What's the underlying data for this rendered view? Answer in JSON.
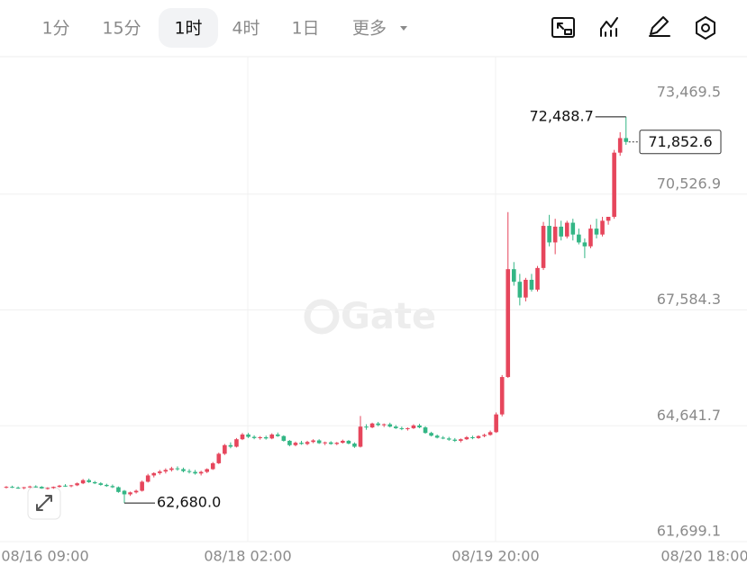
{
  "header": {
    "tabs": [
      "1分",
      "15分",
      "1时",
      "4时",
      "1日",
      "更多"
    ],
    "active_tab": 2
  },
  "chart_data": {
    "type": "candlestick",
    "watermark": "Gate",
    "up_color": "#e6465c",
    "down_color": "#33b685",
    "ylim": [
      61699.1,
      73469.5
    ],
    "yticks": [
      {
        "value": 61699.1,
        "label": "61,699.1"
      },
      {
        "value": 64641.7,
        "label": "64,641.7"
      },
      {
        "value": 67584.3,
        "label": "67,584.3"
      },
      {
        "value": 70526.9,
        "label": "70,526.9"
      },
      {
        "value": 73469.5,
        "label": "73,469.5"
      }
    ],
    "xtick_labels": [
      "08/16 09:00",
      "08/18 02:00",
      "08/19 20:00",
      "08/20 18:00"
    ],
    "high_marker": {
      "value": 72488.7,
      "label": "72,488.7"
    },
    "low_marker": {
      "value": 62680.0,
      "label": "62,680.0"
    },
    "last_price": {
      "value": 71852.6,
      "label": "71,852.6"
    },
    "candles": [
      [
        63080,
        63110,
        63050,
        63090
      ],
      [
        63090,
        63120,
        63060,
        63070
      ],
      [
        63070,
        63100,
        63040,
        63060
      ],
      [
        63060,
        63090,
        63030,
        63080
      ],
      [
        63080,
        63120,
        63060,
        63100
      ],
      [
        63100,
        63130,
        63070,
        63090
      ],
      [
        63090,
        63110,
        63040,
        63050
      ],
      [
        63050,
        63080,
        63020,
        63060
      ],
      [
        63060,
        63100,
        63040,
        63090
      ],
      [
        63090,
        63140,
        63070,
        63120
      ],
      [
        63120,
        63160,
        63090,
        63110
      ],
      [
        63110,
        63140,
        63080,
        63130
      ],
      [
        63130,
        63200,
        63110,
        63180
      ],
      [
        63180,
        63290,
        63160,
        63260
      ],
      [
        63260,
        63300,
        63190,
        63210
      ],
      [
        63210,
        63240,
        63160,
        63180
      ],
      [
        63180,
        63210,
        63120,
        63140
      ],
      [
        63140,
        63170,
        63090,
        63110
      ],
      [
        63110,
        63150,
        63060,
        63080
      ],
      [
        63080,
        63100,
        62940,
        62960
      ],
      [
        62990,
        63010,
        62680,
        62900
      ],
      [
        62900,
        62970,
        62860,
        62950
      ],
      [
        62950,
        63020,
        62920,
        62990
      ],
      [
        62990,
        63250,
        62970,
        63220
      ],
      [
        63220,
        63420,
        63200,
        63380
      ],
      [
        63380,
        63460,
        63330,
        63440
      ],
      [
        63440,
        63520,
        63400,
        63480
      ],
      [
        63480,
        63560,
        63430,
        63520
      ],
      [
        63520,
        63600,
        63480,
        63560
      ],
      [
        63560,
        63610,
        63500,
        63540
      ],
      [
        63540,
        63580,
        63460,
        63490
      ],
      [
        63490,
        63540,
        63430,
        63470
      ],
      [
        63470,
        63520,
        63400,
        63430
      ],
      [
        63430,
        63500,
        63380,
        63470
      ],
      [
        63470,
        63560,
        63440,
        63540
      ],
      [
        63540,
        63720,
        63520,
        63690
      ],
      [
        63690,
        63960,
        63670,
        63930
      ],
      [
        63930,
        64180,
        63900,
        64150
      ],
      [
        64150,
        64220,
        64070,
        64110
      ],
      [
        64110,
        64330,
        64090,
        64300
      ],
      [
        64300,
        64460,
        64280,
        64420
      ],
      [
        64420,
        64460,
        64330,
        64360
      ],
      [
        64360,
        64400,
        64300,
        64330
      ],
      [
        64330,
        64380,
        64290,
        64350
      ],
      [
        64350,
        64390,
        64290,
        64320
      ],
      [
        64320,
        64450,
        64300,
        64420
      ],
      [
        64420,
        64470,
        64360,
        64380
      ],
      [
        64380,
        64400,
        64240,
        64260
      ],
      [
        64260,
        64280,
        64120,
        64150
      ],
      [
        64150,
        64240,
        64120,
        64210
      ],
      [
        64210,
        64260,
        64160,
        64180
      ],
      [
        64180,
        64260,
        64150,
        64230
      ],
      [
        64230,
        64300,
        64200,
        64270
      ],
      [
        64270,
        64300,
        64180,
        64200
      ],
      [
        64200,
        64240,
        64150,
        64220
      ],
      [
        64220,
        64250,
        64160,
        64180
      ],
      [
        64180,
        64230,
        64150,
        64210
      ],
      [
        64210,
        64290,
        64190,
        64260
      ],
      [
        64260,
        64280,
        64170,
        64190
      ],
      [
        64190,
        64220,
        64080,
        64110
      ],
      [
        64110,
        64890,
        64090,
        64620
      ],
      [
        64620,
        64680,
        64540,
        64600
      ],
      [
        64600,
        64720,
        64580,
        64700
      ],
      [
        64700,
        64740,
        64630,
        64660
      ],
      [
        64660,
        64700,
        64610,
        64680
      ],
      [
        64680,
        64720,
        64600,
        64620
      ],
      [
        64620,
        64660,
        64560,
        64580
      ],
      [
        64580,
        64620,
        64530,
        64560
      ],
      [
        64560,
        64600,
        64520,
        64580
      ],
      [
        64580,
        64680,
        64560,
        64650
      ],
      [
        64650,
        64690,
        64580,
        64600
      ],
      [
        64600,
        64630,
        64440,
        64460
      ],
      [
        64460,
        64490,
        64370,
        64390
      ],
      [
        64390,
        64420,
        64320,
        64340
      ],
      [
        64340,
        64380,
        64300,
        64320
      ],
      [
        64320,
        64360,
        64260,
        64290
      ],
      [
        64290,
        64330,
        64230,
        64260
      ],
      [
        64260,
        64320,
        64220,
        64300
      ],
      [
        64300,
        64380,
        64280,
        64350
      ],
      [
        64350,
        64390,
        64300,
        64330
      ],
      [
        64330,
        64400,
        64310,
        64380
      ],
      [
        64380,
        64440,
        64350,
        64410
      ],
      [
        64410,
        64520,
        64390,
        64480
      ],
      [
        64480,
        64980,
        64460,
        64930
      ],
      [
        64930,
        65930,
        64880,
        65880
      ],
      [
        65880,
        70070,
        65860,
        68620
      ],
      [
        68620,
        68800,
        68200,
        68300
      ],
      [
        68300,
        68500,
        67700,
        67900
      ],
      [
        67900,
        68400,
        67800,
        68350
      ],
      [
        68350,
        68500,
        68050,
        68100
      ],
      [
        68100,
        68700,
        68050,
        68650
      ],
      [
        68650,
        69820,
        68600,
        69720
      ],
      [
        69720,
        70000,
        69200,
        69300
      ],
      [
        69300,
        69900,
        69000,
        69700
      ],
      [
        69700,
        69850,
        69350,
        69450
      ],
      [
        69450,
        69850,
        69400,
        69800
      ],
      [
        69800,
        69900,
        69350,
        69500
      ],
      [
        69500,
        69650,
        69250,
        69300
      ],
      [
        69300,
        69400,
        68900,
        69200
      ],
      [
        69200,
        69750,
        69150,
        69650
      ],
      [
        69650,
        69900,
        69400,
        69500
      ],
      [
        69500,
        69950,
        69450,
        69850
      ],
      [
        69850,
        69950,
        69750,
        69950
      ],
      [
        69950,
        71650,
        69900,
        71580
      ],
      [
        71580,
        72100,
        71500,
        71950
      ],
      [
        71950,
        72488.7,
        71780,
        71852.6
      ]
    ]
  }
}
